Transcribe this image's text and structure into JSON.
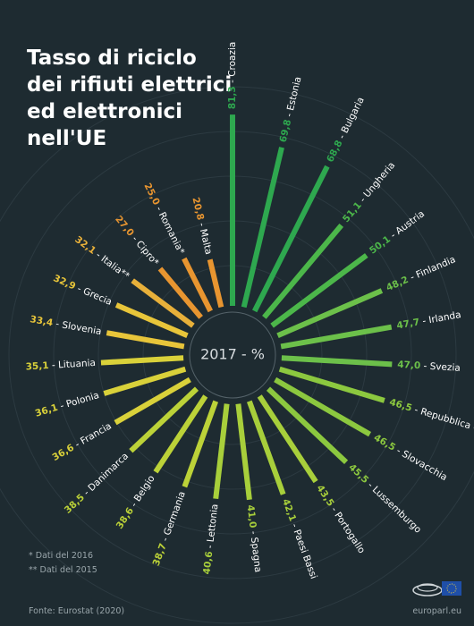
{
  "chart_data": {
    "type": "radial_bar",
    "title": [
      "Tasso di riciclo",
      "dei rifiuti elettrici",
      "ed elettronici",
      "nell'UE"
    ],
    "center_label": "2017 - %",
    "separator": " - ",
    "categories": [
      "Croazia",
      "Estonia",
      "Bulgaria",
      "Ungheria",
      "Austria",
      "Finlandia",
      "Irlanda",
      "Svezia",
      "Repubblica Ceca",
      "Slovacchia",
      "Lussemburgo",
      "Portogallo",
      "Paesi Bassi",
      "Spagna",
      "Lettonia",
      "Germania",
      "Belgio",
      "Danimarca",
      "Francia",
      "Polonia",
      "Lituania",
      "Slovenia",
      "Grecia",
      "Italia**",
      "Cipro*",
      "Romania*",
      "Malta"
    ],
    "values": [
      81.3,
      69.8,
      68.8,
      51.1,
      50.1,
      48.2,
      47.7,
      47.0,
      46.5,
      46.5,
      45.5,
      43.5,
      42.1,
      41.0,
      40.6,
      38.7,
      38.6,
      38.5,
      36.6,
      36.1,
      35.1,
      33.4,
      32.9,
      32.1,
      27.0,
      25.0,
      20.8
    ],
    "value_labels": [
      "81,3",
      "69,8",
      "68,8",
      "51,1",
      "50,1",
      "48,2",
      "47,7",
      "47,0",
      "46,5",
      "46,5",
      "45,5",
      "43,5",
      "42,1",
      "41,0",
      "40,6",
      "38,7",
      "38,6",
      "38,5",
      "36,6",
      "36,1",
      "35,1",
      "33,4",
      "32,9",
      "32,1",
      "27,0",
      "25,0",
      "20,8"
    ],
    "colors": [
      "#2ea84f",
      "#2ea84f",
      "#2ea84f",
      "#4cb74a",
      "#4cb74a",
      "#6cc04a",
      "#6cc04a",
      "#6cc04a",
      "#8cc83f",
      "#8cc83f",
      "#8cc83f",
      "#a8cf3b",
      "#a8cf3b",
      "#a8cf3b",
      "#a8cf3b",
      "#bcd238",
      "#bcd238",
      "#bcd238",
      "#d9d13a",
      "#d9d13a",
      "#d9d13a",
      "#e8c53a",
      "#e8c53a",
      "#e8b03a",
      "#e89530",
      "#e89530",
      "#e89530"
    ],
    "notes": [
      "* Dati del 2016",
      "** Dati del 2015"
    ],
    "source": "Fonte: Eurostat (2020)",
    "site": "europarl.eu"
  }
}
